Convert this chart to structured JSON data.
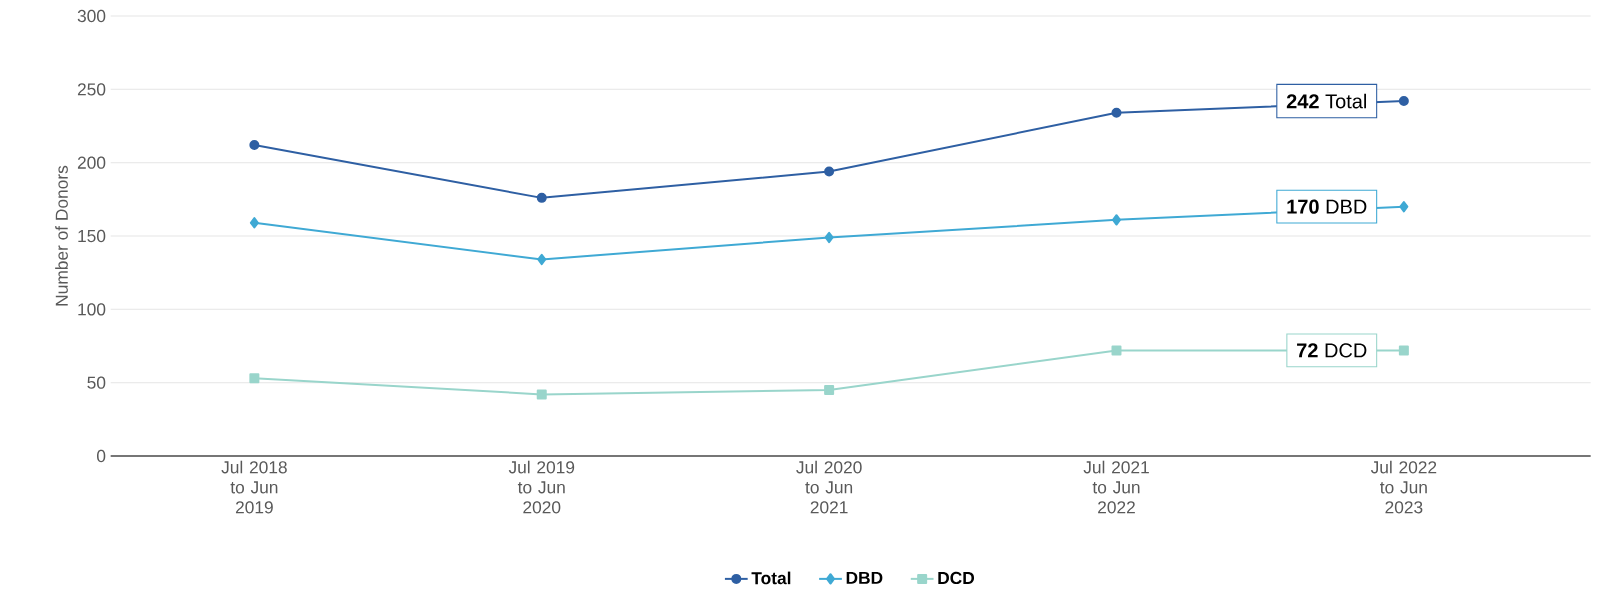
{
  "chart_data": {
    "type": "line",
    "ylabel": "Number of Donors",
    "categories": [
      "Jul 2018 to Jun 2019",
      "Jul 2019 to Jun 2020",
      "Jul 2020 to Jun 2021",
      "Jul 2021 to Jun 2022",
      "Jul 2022 to Jun 2023"
    ],
    "series": [
      {
        "name": "Total",
        "color": "#2e5fa3",
        "marker": "circle",
        "values": [
          212,
          176,
          194,
          234,
          242
        ]
      },
      {
        "name": "DBD",
        "color": "#3fa9d4",
        "marker": "diamond",
        "values": [
          159,
          134,
          149,
          161,
          170
        ]
      },
      {
        "name": "DCD",
        "color": "#99d5cb",
        "marker": "square",
        "values": [
          53,
          42,
          45,
          72,
          72
        ]
      }
    ],
    "ylim": [
      0,
      300
    ],
    "yticks": [
      0,
      50,
      100,
      150,
      200,
      250,
      300
    ],
    "grid": "y",
    "legend": "bottom",
    "line_style": "solid",
    "annotations": [
      {
        "text": "**242** Total",
        "x": "Jul 2022 to Jun 2023",
        "y": 242
      },
      {
        "text": "**170** DBD",
        "x": "Jul 2022 to Jun 2023",
        "y": 170
      },
      {
        "text": "**72** DCD",
        "x": "Jul 2022 to Jun 2023",
        "y": 72
      }
    ]
  }
}
